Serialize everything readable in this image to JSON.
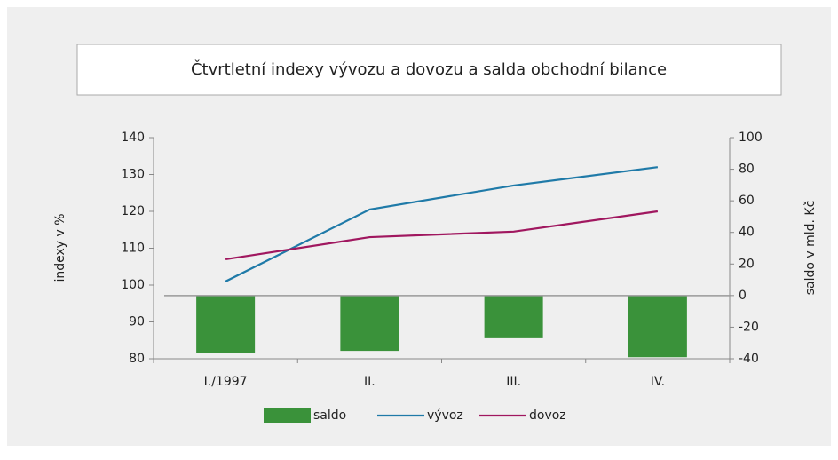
{
  "chart_data": {
    "type": "bar-line",
    "title": "Čtvrtletní indexy vývozu a dovozu a salda obchodní bilance",
    "categories": [
      "I./1997",
      "II.",
      "III.",
      "IV."
    ],
    "ylabel": "indexy v %",
    "y2label": "saldo v mld. Kč",
    "ylim": [
      80,
      140
    ],
    "yticks": [
      80,
      90,
      100,
      110,
      120,
      130,
      140
    ],
    "y2lim": [
      -40,
      100
    ],
    "y2ticks": [
      -40,
      -20,
      0,
      20,
      40,
      60,
      80,
      100
    ],
    "series": [
      {
        "name": "saldo",
        "type": "bar",
        "axis": "y2",
        "color": "#3a923a",
        "values": [
          -36.5,
          -35,
          -27,
          -39
        ]
      },
      {
        "name": "vývoz",
        "type": "line",
        "axis": "y",
        "color": "#1f7aa8",
        "values": [
          101,
          120.5,
          127,
          132
        ]
      },
      {
        "name": "dovoz",
        "type": "line",
        "axis": "y",
        "color": "#a0175f",
        "values": [
          107,
          113,
          114.5,
          120
        ]
      }
    ],
    "legend": "bottom"
  }
}
